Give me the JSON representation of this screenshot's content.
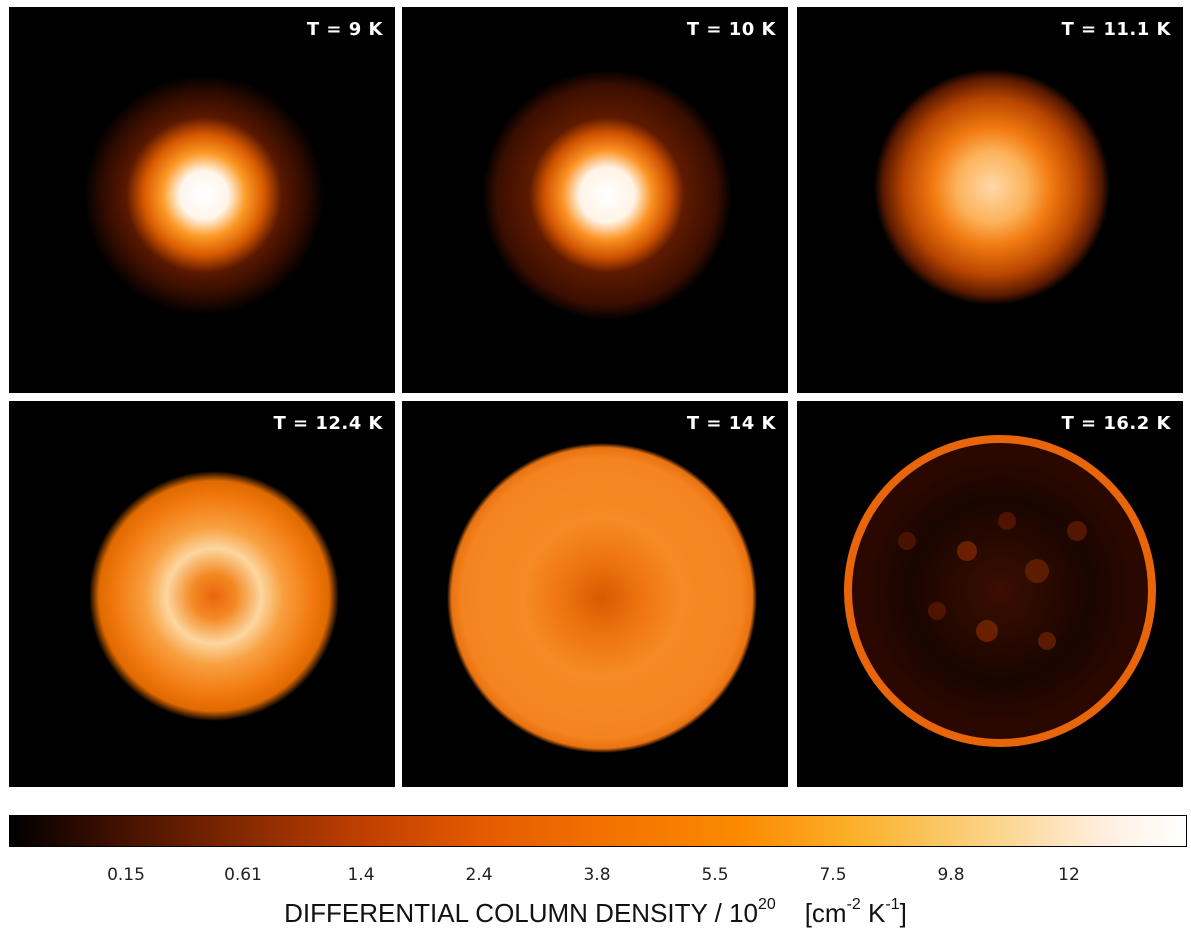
{
  "panels": [
    {
      "label": "T = 9 K"
    },
    {
      "label": "T = 10 K"
    },
    {
      "label": "T = 11.1 K"
    },
    {
      "label": "T = 12.4 K"
    },
    {
      "label": "T = 14 K"
    },
    {
      "label": "T = 16.2 K"
    }
  ],
  "colorbar": {
    "ticks": [
      "0.15",
      "0.61",
      "1.4",
      "2.4",
      "3.8",
      "5.5",
      "7.5",
      "9.8",
      "12"
    ],
    "label_main": "DIFFERENTIAL COLUMN DENSITY / 10",
    "label_exp": "20",
    "label_unit_open": "[cm",
    "label_unit_exp1": "-2",
    "label_unit_mid": " K",
    "label_unit_exp2": "-1",
    "label_unit_close": "]"
  },
  "colors": {
    "background": "#000000",
    "dim_orange": "#b03a00",
    "orange": "#f27a10",
    "light_orange": "#fbb25a",
    "core": "#ffffff"
  }
}
